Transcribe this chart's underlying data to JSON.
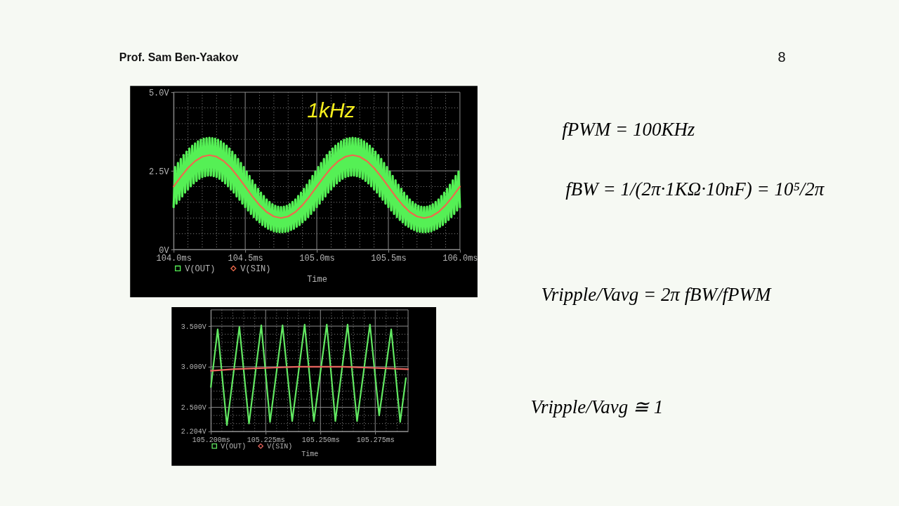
{
  "chart_data": [
    {
      "type": "other",
      "title": "Prof. Sam Ben-Yaakov",
      "annotations": [
        "8"
      ]
    },
    {
      "type": "line",
      "xlabel": "Time",
      "annotations": [
        "1kHz"
      ],
      "xlim": [
        104.0,
        106.0
      ],
      "xticks": [
        {
          "value": 104.0,
          "label": "104.0ms"
        },
        {
          "value": 104.1,
          "label": null
        },
        {
          "value": 104.2,
          "label": null
        },
        {
          "value": 104.3,
          "label": null
        },
        {
          "value": 104.4,
          "label": null
        },
        {
          "value": 104.5,
          "label": "104.5ms"
        },
        {
          "value": 104.6,
          "label": null
        },
        {
          "value": 104.7,
          "label": null
        },
        {
          "value": 104.8,
          "label": null
        },
        {
          "value": 104.9,
          "label": null
        },
        {
          "value": 105.0,
          "label": "105.0ms"
        },
        {
          "value": 105.1,
          "label": null
        },
        {
          "value": 105.2,
          "label": null
        },
        {
          "value": 105.3,
          "label": null
        },
        {
          "value": 105.4,
          "label": null
        },
        {
          "value": 105.5,
          "label": "105.5ms"
        },
        {
          "value": 105.6,
          "label": null
        },
        {
          "value": 105.7,
          "label": null
        },
        {
          "value": 105.8,
          "label": null
        },
        {
          "value": 105.9,
          "label": null
        },
        {
          "value": 106.0,
          "label": "106.0ms"
        }
      ],
      "ylim": [
        0,
        5
      ],
      "yticks": [
        {
          "value": 0,
          "label": "0V"
        },
        {
          "value": 0.5,
          "label": null
        },
        {
          "value": 1,
          "label": null
        },
        {
          "value": 1.5,
          "label": null
        },
        {
          "value": 2,
          "label": null
        },
        {
          "value": 2.5,
          "label": "2.5V"
        },
        {
          "value": 3,
          "label": null
        },
        {
          "value": 3.5,
          "label": null
        },
        {
          "value": 4,
          "label": null
        },
        {
          "value": 4.5,
          "label": null
        },
        {
          "value": 5,
          "label": "5.0V"
        }
      ],
      "grid": true,
      "legend": "bottom left",
      "series": [
        {
          "name": "V(OUT)",
          "color": "#55f055",
          "x": [
            104.0,
            104.01,
            104.02,
            104.03,
            104.04,
            104.05,
            104.06,
            104.07,
            104.08,
            104.09,
            104.1,
            104.11,
            104.12,
            104.13,
            104.14,
            104.15,
            104.16,
            104.17,
            104.18,
            104.19,
            104.2,
            104.21,
            104.22,
            104.23,
            104.24,
            104.25,
            104.26,
            104.27,
            104.28,
            104.29,
            104.3,
            104.31,
            104.32,
            104.33,
            104.34,
            104.35,
            104.36,
            104.37,
            104.38,
            104.39,
            104.4,
            104.41,
            104.42,
            104.43,
            104.44,
            104.45,
            104.46,
            104.47,
            104.48,
            104.49,
            104.5,
            104.51,
            104.52,
            104.53,
            104.54,
            104.55,
            104.56,
            104.57,
            104.58,
            104.59,
            104.6,
            104.61,
            104.62,
            104.63,
            104.64,
            104.65,
            104.66,
            104.67,
            104.68,
            104.69,
            104.7,
            104.71,
            104.72,
            104.73,
            104.74,
            104.75,
            104.76,
            104.77,
            104.78,
            104.79,
            104.8,
            104.81,
            104.82,
            104.83,
            104.84,
            104.85,
            104.86,
            104.87,
            104.88,
            104.89,
            104.9,
            104.91,
            104.92,
            104.93,
            104.94,
            104.95,
            104.96,
            104.97,
            104.98,
            104.99,
            105.0,
            105.01,
            105.02,
            105.03,
            105.04,
            105.05,
            105.06,
            105.07,
            105.08,
            105.09,
            105.1,
            105.11,
            105.12,
            105.13,
            105.14,
            105.15,
            105.16,
            105.17,
            105.18,
            105.19,
            105.2,
            105.21,
            105.22,
            105.23,
            105.24,
            105.25,
            105.26,
            105.27,
            105.28,
            105.29,
            105.3,
            105.31,
            105.32,
            105.33,
            105.34,
            105.35,
            105.36,
            105.37,
            105.38,
            105.39,
            105.4,
            105.41,
            105.42,
            105.43,
            105.44,
            105.45,
            105.46,
            105.47,
            105.48,
            105.49,
            105.5,
            105.51,
            105.52,
            105.53,
            105.54,
            105.55,
            105.56,
            105.57,
            105.58,
            105.59,
            105.6,
            105.61,
            105.62,
            105.63,
            105.64,
            105.65,
            105.66,
            105.67,
            105.68,
            105.69,
            105.7,
            105.71,
            105.72,
            105.73,
            105.74,
            105.75,
            105.76,
            105.77,
            105.78,
            105.79,
            105.8,
            105.81,
            105.82,
            105.83,
            105.84,
            105.85,
            105.86,
            105.87,
            105.88,
            105.89,
            105.9,
            105.91,
            105.92,
            105.93,
            105.94,
            105.95,
            105.96,
            105.97,
            105.98,
            105.99,
            106.0
          ],
          "values": [
            1.35,
            2.62,
            1.46,
            2.75,
            1.58,
            2.88,
            1.69,
            3.0,
            1.81,
            3.11,
            1.91,
            3.21,
            2.01,
            3.3,
            2.1,
            3.37,
            2.18,
            3.44,
            2.25,
            3.49,
            2.3,
            3.52,
            2.33,
            3.54,
            2.35,
            3.55,
            2.35,
            3.54,
            2.33,
            3.52,
            2.3,
            3.49,
            2.25,
            3.44,
            2.18,
            3.37,
            2.1,
            3.3,
            2.01,
            3.21,
            1.91,
            3.11,
            1.81,
            3.0,
            1.69,
            2.88,
            1.58,
            2.75,
            1.46,
            2.62,
            1.35,
            2.48,
            1.24,
            2.34,
            1.13,
            2.2,
            1.03,
            2.06,
            0.94,
            1.93,
            0.86,
            1.81,
            0.78,
            1.7,
            0.72,
            1.59,
            0.66,
            1.51,
            0.62,
            1.44,
            0.58,
            1.39,
            0.56,
            1.36,
            0.55,
            1.35,
            0.55,
            1.36,
            0.56,
            1.39,
            0.58,
            1.44,
            0.62,
            1.51,
            0.66,
            1.59,
            0.72,
            1.7,
            0.78,
            1.81,
            0.86,
            1.93,
            0.94,
            2.06,
            1.03,
            2.2,
            1.13,
            2.34,
            1.24,
            2.48,
            1.35,
            2.62,
            1.46,
            2.75,
            1.58,
            2.88,
            1.69,
            3.0,
            1.81,
            3.11,
            1.91,
            3.21,
            2.01,
            3.3,
            2.1,
            3.37,
            2.18,
            3.44,
            2.25,
            3.49,
            2.3,
            3.52,
            2.33,
            3.54,
            2.35,
            3.55,
            2.35,
            3.54,
            2.33,
            3.52,
            2.3,
            3.49,
            2.25,
            3.44,
            2.18,
            3.37,
            2.1,
            3.3,
            2.01,
            3.21,
            1.91,
            3.11,
            1.81,
            3.0,
            1.69,
            2.88,
            1.58,
            2.75,
            1.46,
            2.62,
            1.35,
            2.48,
            1.24,
            2.34,
            1.13,
            2.2,
            1.03,
            2.06,
            0.94,
            1.93,
            0.86,
            1.81,
            0.78,
            1.7,
            0.72,
            1.59,
            0.66,
            1.51,
            0.62,
            1.44,
            0.58,
            1.39,
            0.56,
            1.36,
            0.55,
            1.35,
            0.55,
            1.36,
            0.56,
            1.39,
            0.58,
            1.44,
            0.62,
            1.51,
            0.66,
            1.59,
            0.72,
            1.7,
            0.78,
            1.81,
            0.86,
            1.93,
            0.94,
            2.06,
            1.03,
            2.2,
            1.13,
            2.34,
            1.24,
            2.48,
            1.35
          ]
        },
        {
          "name": "V(SIN)",
          "color": "#ee6a4c",
          "x": [
            104.0,
            104.05,
            104.1,
            104.15,
            104.2,
            104.25,
            104.3,
            104.35,
            104.4,
            104.45,
            104.5,
            104.55,
            104.6,
            104.65,
            104.7,
            104.75,
            104.8,
            104.85,
            104.9,
            104.95,
            105.0,
            105.05,
            105.1,
            105.15,
            105.2,
            105.25,
            105.3,
            105.35,
            105.4,
            105.45,
            105.5,
            105.55,
            105.6,
            105.65,
            105.7,
            105.75,
            105.8,
            105.85,
            105.9,
            105.95,
            106.0
          ],
          "values": [
            2.0,
            2.31,
            2.59,
            2.81,
            2.95,
            3.0,
            2.95,
            2.81,
            2.59,
            2.31,
            2.0,
            1.69,
            1.41,
            1.19,
            1.05,
            1.0,
            1.05,
            1.19,
            1.41,
            1.69,
            2.0,
            2.31,
            2.59,
            2.81,
            2.95,
            3.0,
            2.95,
            2.81,
            2.59,
            2.31,
            2.0,
            1.69,
            1.41,
            1.19,
            1.05,
            1.0,
            1.05,
            1.19,
            1.41,
            1.69,
            2.0
          ]
        }
      ]
    },
    {
      "type": "line",
      "xlabel": "Time",
      "xlim": [
        105.2,
        105.29
      ],
      "xticks": [
        {
          "value": 105.2,
          "label": "105.200ms"
        },
        {
          "value": 105.205,
          "label": null
        },
        {
          "value": 105.21,
          "label": null
        },
        {
          "value": 105.215,
          "label": null
        },
        {
          "value": 105.22,
          "label": null
        },
        {
          "value": 105.225,
          "label": "105.225ms"
        },
        {
          "value": 105.23,
          "label": null
        },
        {
          "value": 105.235,
          "label": null
        },
        {
          "value": 105.24,
          "label": null
        },
        {
          "value": 105.245,
          "label": null
        },
        {
          "value": 105.25,
          "label": "105.250ms"
        },
        {
          "value": 105.255,
          "label": null
        },
        {
          "value": 105.26,
          "label": null
        },
        {
          "value": 105.265,
          "label": null
        },
        {
          "value": 105.27,
          "label": null
        },
        {
          "value": 105.275,
          "label": "105.275ms"
        },
        {
          "value": 105.28,
          "label": null
        },
        {
          "value": 105.285,
          "label": null
        },
        {
          "value": 105.29,
          "label": null
        }
      ],
      "ylim": [
        2.204,
        3.7
      ],
      "yticks": [
        {
          "value": 2.204,
          "label": "2.204V"
        },
        {
          "value": 2.3,
          "label": null
        },
        {
          "value": 2.4,
          "label": null
        },
        {
          "value": 2.5,
          "label": "2.500V"
        },
        {
          "value": 2.6,
          "label": null
        },
        {
          "value": 2.7,
          "label": null
        },
        {
          "value": 2.8,
          "label": null
        },
        {
          "value": 2.9,
          "label": null
        },
        {
          "value": 3.0,
          "label": "3.000V"
        },
        {
          "value": 3.1,
          "label": null
        },
        {
          "value": 3.2,
          "label": null
        },
        {
          "value": 3.3,
          "label": null
        },
        {
          "value": 3.4,
          "label": null
        },
        {
          "value": 3.5,
          "label": "3.500V"
        },
        {
          "value": 3.6,
          "label": null
        },
        {
          "value": 3.7,
          "label": null
        }
      ],
      "grid": true,
      "legend": "bottom left",
      "series": [
        {
          "name": "V(OUT)",
          "color": "#62e862",
          "x": [
            105.2,
            105.2031,
            105.2073,
            105.213,
            105.2174,
            105.223,
            105.227,
            105.2327,
            105.2371,
            105.2428,
            105.247,
            105.2529,
            105.2568,
            105.2624,
            105.2667,
            105.2726,
            105.2768,
            105.2823,
            105.2864,
            105.289
          ],
          "values": [
            2.75,
            3.46,
            2.28,
            3.49,
            2.3,
            3.51,
            2.32,
            3.51,
            2.33,
            3.52,
            2.33,
            3.52,
            2.33,
            3.52,
            2.33,
            3.52,
            2.4,
            3.46,
            2.32,
            2.86
          ]
        },
        {
          "name": "V(SIN)",
          "color": "#e8645e",
          "x": [
            105.2,
            105.21,
            105.22,
            105.23,
            105.24,
            105.25,
            105.26,
            105.27,
            105.28,
            105.29
          ],
          "values": [
            2.95,
            2.97,
            2.98,
            2.99,
            3.0,
            3.0,
            3.0,
            2.99,
            2.98,
            2.97
          ]
        }
      ]
    },
    {
      "type": "other",
      "annotations": [
        "fPWM = 100KHz",
        "fBW = 1/(2π·1KΩ·10nF) = 10⁵/2π",
        "Vripple/Vavg = 2π fBW/fPWM",
        "Vripple/Vavg ≅ 1"
      ]
    }
  ]
}
